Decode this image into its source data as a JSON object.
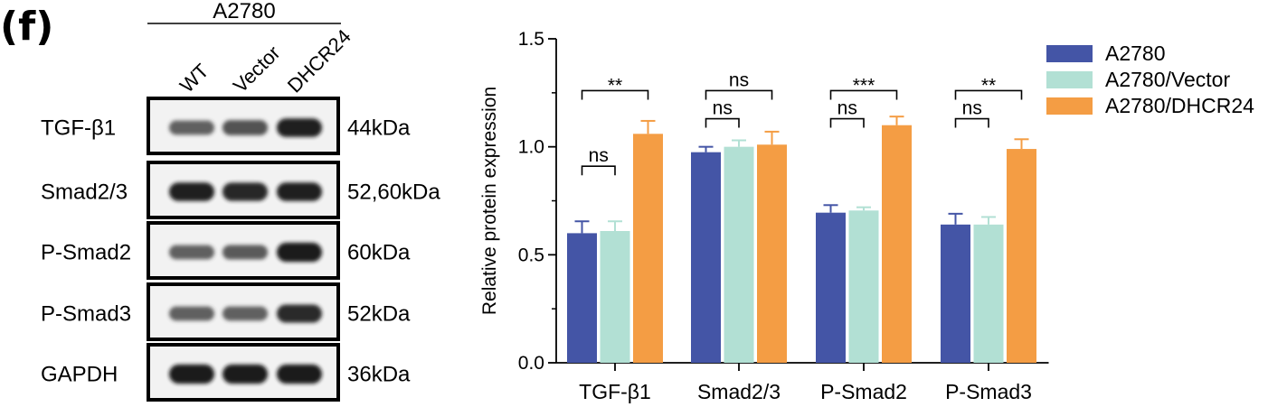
{
  "panel_label": "(f)",
  "blot": {
    "cell_line": "A2780",
    "lanes": [
      "WT",
      "Vector",
      "DHCR24"
    ],
    "rows": [
      {
        "protein": "TGF-β1",
        "size": "44kDa",
        "intensity": [
          0.55,
          0.62,
          0.9
        ]
      },
      {
        "protein": "Smad2/3",
        "size": "52,60kDa",
        "intensity": [
          0.9,
          0.88,
          0.9
        ]
      },
      {
        "protein": "P-Smad2",
        "size": "60kDa",
        "intensity": [
          0.55,
          0.58,
          0.95
        ]
      },
      {
        "protein": "P-Smad3",
        "size": "52kDa",
        "intensity": [
          0.55,
          0.55,
          0.85
        ]
      },
      {
        "protein": "GAPDH",
        "size": "36kDa",
        "intensity": [
          0.95,
          0.95,
          0.95
        ]
      }
    ]
  },
  "chart_data": {
    "type": "bar",
    "title": "",
    "xlabel": "",
    "ylabel": "Relative protein expression",
    "ylim": [
      0,
      1.5
    ],
    "yticks": [
      0.0,
      0.5,
      1.0,
      1.5
    ],
    "ytick_labels": [
      "0.0",
      "0.5",
      "1.0",
      "1.5"
    ],
    "categories": [
      "TGF-β1",
      "Smad2/3",
      "P-Smad2",
      "P-Smad3"
    ],
    "series": [
      {
        "name": "A2780",
        "color": "#4455a6",
        "values": [
          0.6,
          0.975,
          0.695,
          0.64
        ],
        "errors": [
          0.055,
          0.025,
          0.035,
          0.05
        ]
      },
      {
        "name": "A2780/Vector",
        "color": "#b2e0d4",
        "values": [
          0.61,
          1.0,
          0.705,
          0.64
        ],
        "errors": [
          0.045,
          0.03,
          0.015,
          0.035
        ]
      },
      {
        "name": "A2780/DHCR24",
        "color": "#f49d44",
        "values": [
          1.06,
          1.01,
          1.1,
          0.99
        ],
        "errors": [
          0.06,
          0.06,
          0.04,
          0.045
        ]
      }
    ],
    "significance": [
      {
        "category": 0,
        "pair": "0-1",
        "label": "ns",
        "y": 0.91
      },
      {
        "category": 0,
        "pair": "0-2",
        "label": "**",
        "y": 1.26
      },
      {
        "category": 1,
        "pair": "0-1",
        "label": "ns",
        "y": 1.13
      },
      {
        "category": 1,
        "pair": "0-2",
        "label": "ns",
        "y": 1.26
      },
      {
        "category": 2,
        "pair": "0-1",
        "label": "ns",
        "y": 1.13
      },
      {
        "category": 2,
        "pair": "0-2",
        "label": "***",
        "y": 1.26
      },
      {
        "category": 3,
        "pair": "0-1",
        "label": "ns",
        "y": 1.13
      },
      {
        "category": 3,
        "pair": "0-2",
        "label": "**",
        "y": 1.26
      }
    ],
    "legend_position": "top-right",
    "grid": false
  }
}
